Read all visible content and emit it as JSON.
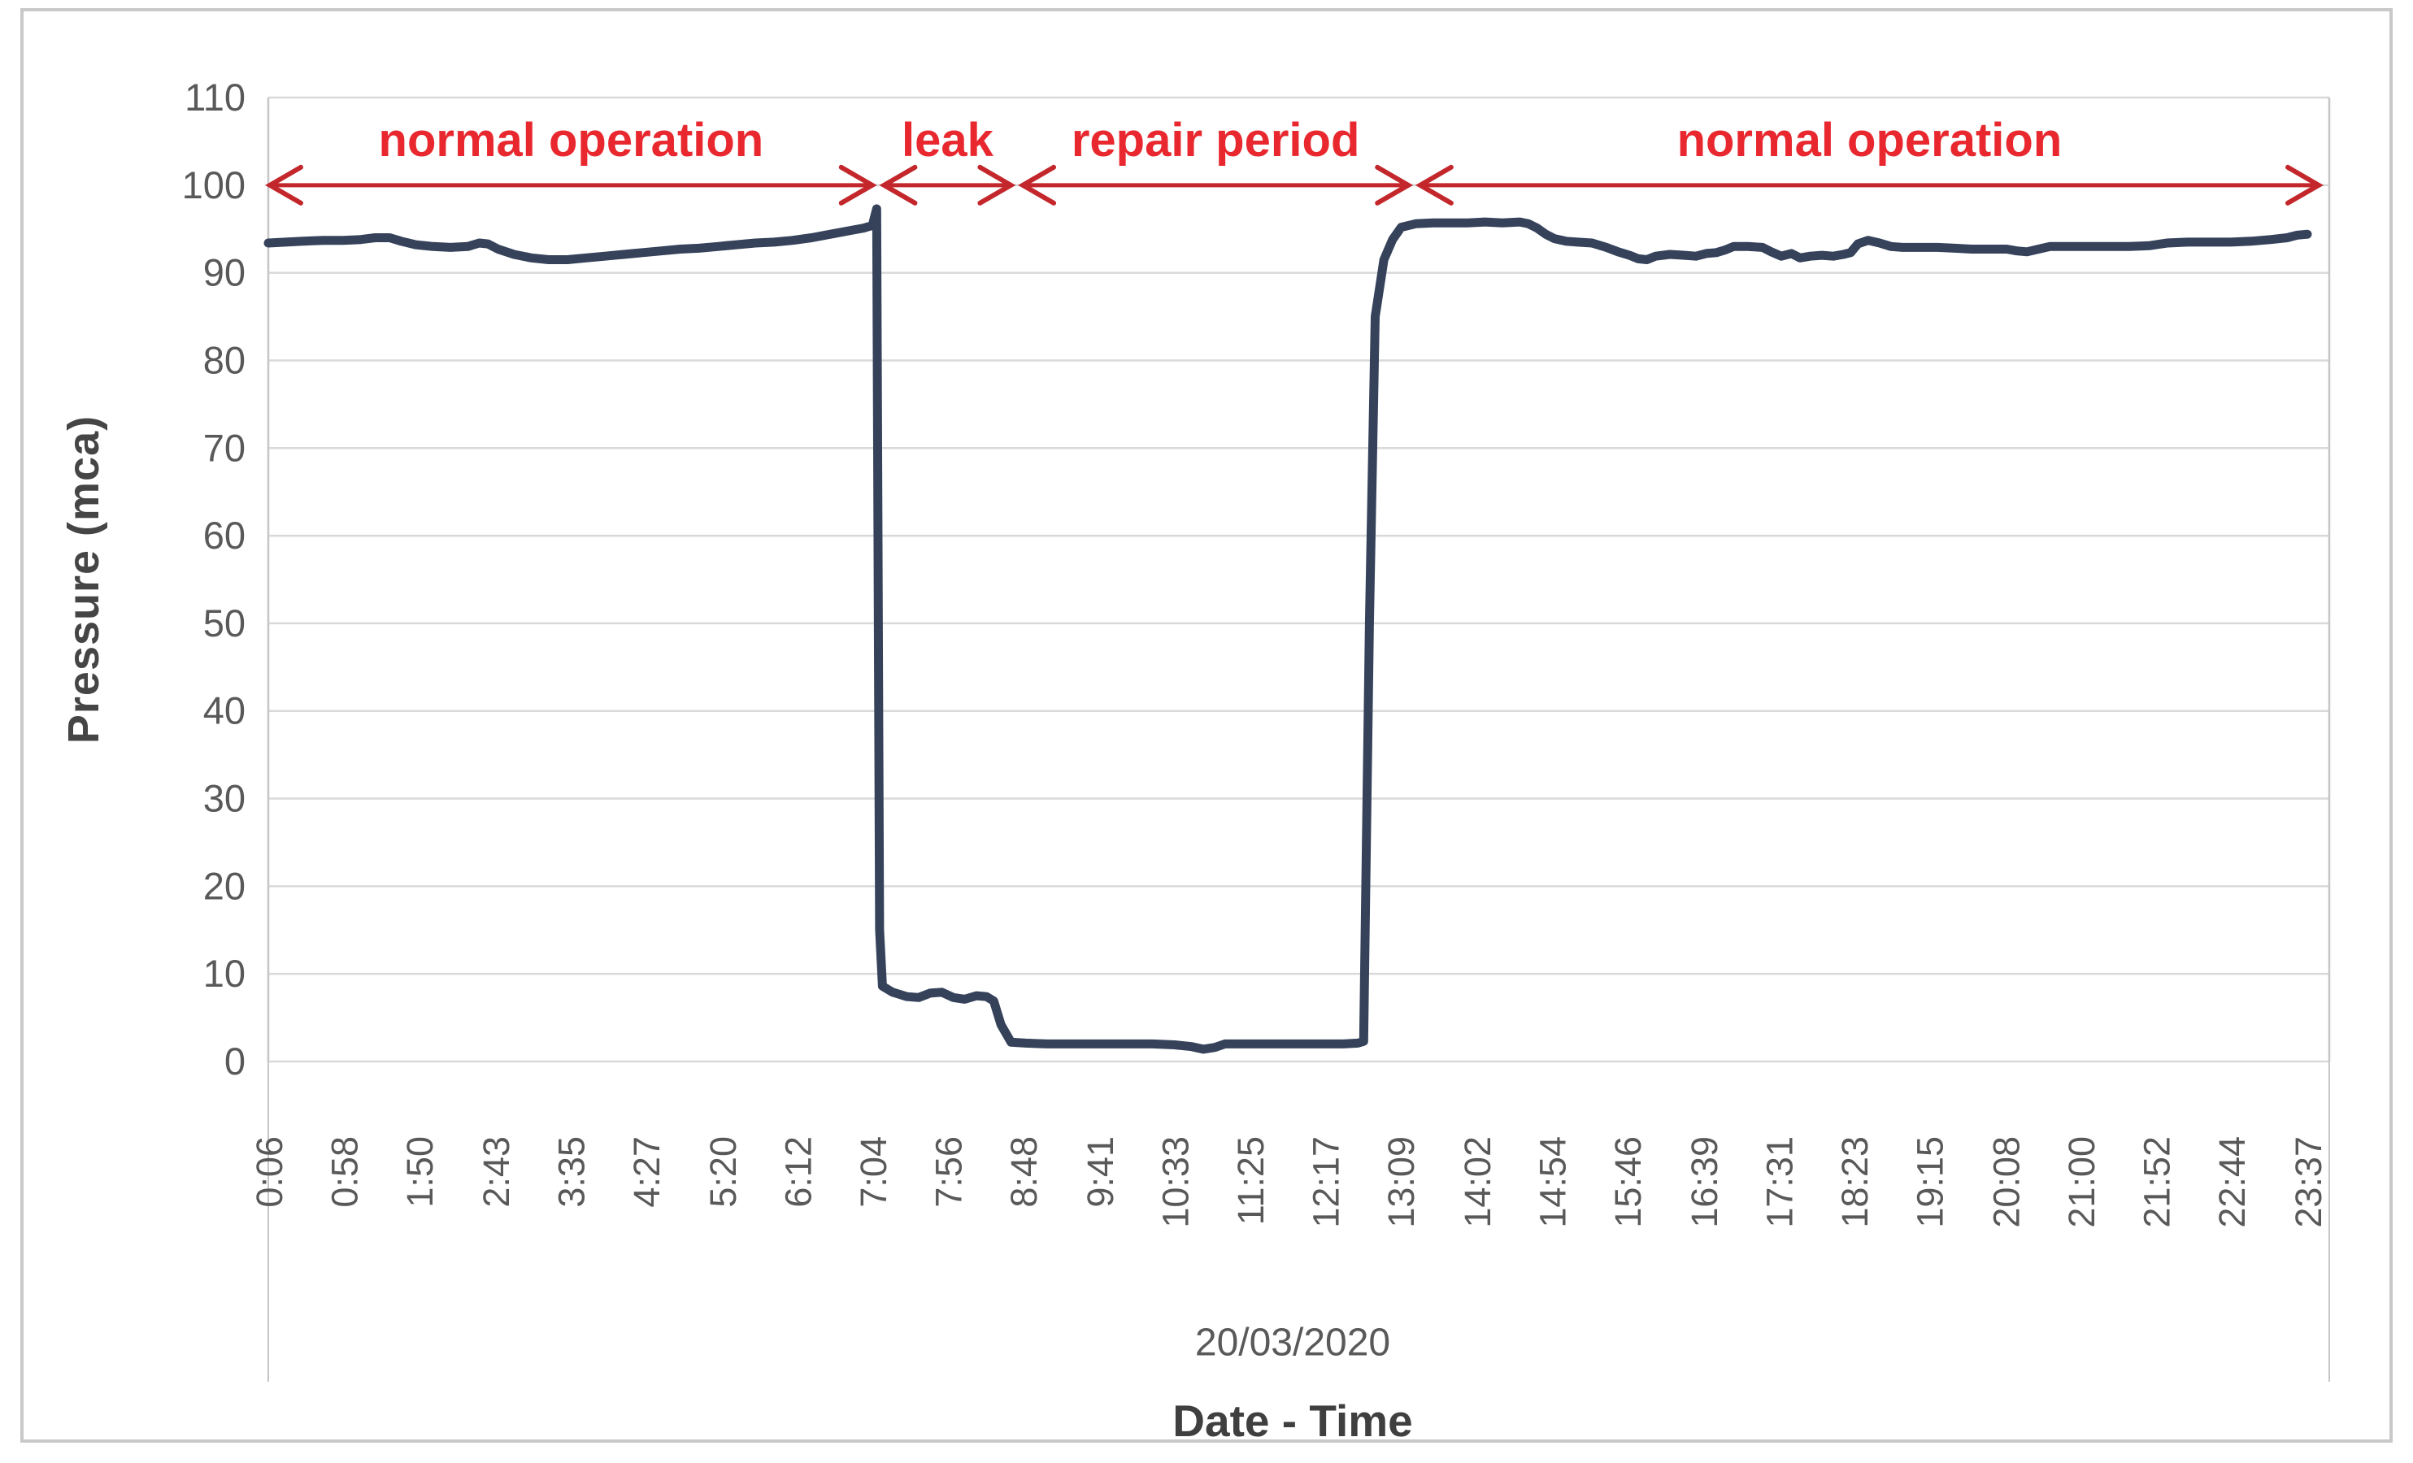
{
  "figure": {
    "background": "#ffffff",
    "border_color": "#c9c9c9"
  },
  "chart_data": {
    "type": "line",
    "title": "",
    "xlabel": "Date - Time",
    "ylabel": "Pressure (mca)",
    "date_label": "20/03/2020",
    "ylim": [
      0,
      110
    ],
    "ytick_step": 10,
    "grid": true,
    "legend": "none",
    "x_tick_labels": [
      "0:06",
      "0:58",
      "1:50",
      "2:43",
      "3:35",
      "4:27",
      "5:20",
      "6:12",
      "7:04",
      "7:56",
      "8:48",
      "9:41",
      "10:33",
      "11:25",
      "12:17",
      "13:09",
      "14:02",
      "14:54",
      "15:46",
      "16:39",
      "17:31",
      "18:23",
      "19:15",
      "20:08",
      "21:00",
      "21:52",
      "22:44",
      "23:37"
    ],
    "series": [
      {
        "name": "pressure",
        "color": "#35425a",
        "points": [
          [
            6,
            93.4
          ],
          [
            18,
            93.5
          ],
          [
            30,
            93.6
          ],
          [
            44,
            93.7
          ],
          [
            58,
            93.7
          ],
          [
            70,
            93.8
          ],
          [
            80,
            94.0
          ],
          [
            90,
            94.0
          ],
          [
            98,
            93.6
          ],
          [
            108,
            93.2
          ],
          [
            120,
            93.0
          ],
          [
            132,
            92.9
          ],
          [
            144,
            93.0
          ],
          [
            152,
            93.4
          ],
          [
            158,
            93.3
          ],
          [
            165,
            92.7
          ],
          [
            176,
            92.1
          ],
          [
            188,
            91.7
          ],
          [
            200,
            91.5
          ],
          [
            213,
            91.5
          ],
          [
            226,
            91.7
          ],
          [
            239,
            91.9
          ],
          [
            252,
            92.1
          ],
          [
            265,
            92.3
          ],
          [
            278,
            92.5
          ],
          [
            291,
            92.7
          ],
          [
            304,
            92.8
          ],
          [
            317,
            93.0
          ],
          [
            330,
            93.2
          ],
          [
            343,
            93.4
          ],
          [
            356,
            93.5
          ],
          [
            369,
            93.7
          ],
          [
            382,
            94.0
          ],
          [
            395,
            94.4
          ],
          [
            408,
            94.8
          ],
          [
            418,
            95.1
          ],
          [
            424,
            95.4
          ],
          [
            427,
            97.3
          ],
          [
            429,
            15
          ],
          [
            431,
            8.6
          ],
          [
            438,
            7.9
          ],
          [
            448,
            7.4
          ],
          [
            456,
            7.3
          ],
          [
            464,
            7.8
          ],
          [
            472,
            7.9
          ],
          [
            480,
            7.3
          ],
          [
            488,
            7.1
          ],
          [
            496,
            7.5
          ],
          [
            503,
            7.4
          ],
          [
            508,
            6.9
          ],
          [
            513,
            4.2
          ],
          [
            520,
            2.2
          ],
          [
            530,
            2.1
          ],
          [
            545,
            2.0
          ],
          [
            562,
            2.0
          ],
          [
            581,
            2.0
          ],
          [
            600,
            2.0
          ],
          [
            618,
            2.0
          ],
          [
            633,
            1.9
          ],
          [
            645,
            1.7
          ],
          [
            653,
            1.4
          ],
          [
            661,
            1.6
          ],
          [
            668,
            2.0
          ],
          [
            685,
            2.0
          ],
          [
            705,
            2.0
          ],
          [
            722,
            2.0
          ],
          [
            737,
            2.0
          ],
          [
            750,
            2.0
          ],
          [
            760,
            2.1
          ],
          [
            764,
            2.3
          ],
          [
            768,
            50
          ],
          [
            772,
            85
          ],
          [
            778,
            91.5
          ],
          [
            784,
            93.8
          ],
          [
            790,
            95.2
          ],
          [
            800,
            95.6
          ],
          [
            812,
            95.7
          ],
          [
            824,
            95.7
          ],
          [
            836,
            95.7
          ],
          [
            848,
            95.8
          ],
          [
            860,
            95.7
          ],
          [
            872,
            95.8
          ],
          [
            878,
            95.6
          ],
          [
            884,
            95.1
          ],
          [
            890,
            94.4
          ],
          [
            896,
            93.9
          ],
          [
            904,
            93.6
          ],
          [
            912,
            93.5
          ],
          [
            922,
            93.4
          ],
          [
            932,
            92.9
          ],
          [
            940,
            92.4
          ],
          [
            948,
            92.0
          ],
          [
            954,
            91.6
          ],
          [
            960,
            91.5
          ],
          [
            966,
            91.9
          ],
          [
            976,
            92.1
          ],
          [
            986,
            92.0
          ],
          [
            994,
            91.9
          ],
          [
            1001,
            92.2
          ],
          [
            1008,
            92.3
          ],
          [
            1014,
            92.6
          ],
          [
            1020,
            93.0
          ],
          [
            1030,
            93.0
          ],
          [
            1040,
            92.9
          ],
          [
            1046,
            92.4
          ],
          [
            1053,
            91.9
          ],
          [
            1060,
            92.2
          ],
          [
            1066,
            91.7
          ],
          [
            1073,
            91.9
          ],
          [
            1081,
            92.0
          ],
          [
            1089,
            91.9
          ],
          [
            1096,
            92.1
          ],
          [
            1101,
            92.3
          ],
          [
            1106,
            93.3
          ],
          [
            1113,
            93.7
          ],
          [
            1121,
            93.4
          ],
          [
            1129,
            93.0
          ],
          [
            1137,
            92.9
          ],
          [
            1149,
            92.9
          ],
          [
            1161,
            92.9
          ],
          [
            1173,
            92.8
          ],
          [
            1185,
            92.7
          ],
          [
            1197,
            92.7
          ],
          [
            1209,
            92.7
          ],
          [
            1216,
            92.5
          ],
          [
            1223,
            92.4
          ],
          [
            1231,
            92.7
          ],
          [
            1239,
            93.0
          ],
          [
            1252,
            93.0
          ],
          [
            1266,
            93.0
          ],
          [
            1280,
            93.0
          ],
          [
            1294,
            93.0
          ],
          [
            1308,
            93.1
          ],
          [
            1320,
            93.4
          ],
          [
            1334,
            93.5
          ],
          [
            1350,
            93.5
          ],
          [
            1364,
            93.5
          ],
          [
            1378,
            93.6
          ],
          [
            1392,
            93.8
          ],
          [
            1403,
            94.0
          ],
          [
            1410,
            94.3
          ],
          [
            1417,
            94.4
          ]
        ]
      }
    ],
    "annotations": {
      "arrow_y_value": 100,
      "color_text": "#e8282e",
      "color_line": "#c3272b",
      "periods": [
        {
          "label": "normal operation",
          "start": "0:06",
          "end": "7:05"
        },
        {
          "label": "leak",
          "start": "7:11",
          "end": "8:41"
        },
        {
          "label": "repair period",
          "start": "8:47",
          "end": "13:16"
        },
        {
          "label": "normal operation",
          "start": "13:22",
          "end": "23:46"
        }
      ]
    },
    "styles": {
      "grid_color": "#d9d9d9",
      "edge_color": "#c6c6c6",
      "tick_color": "#595959",
      "axis_title_color": "#454545"
    }
  }
}
